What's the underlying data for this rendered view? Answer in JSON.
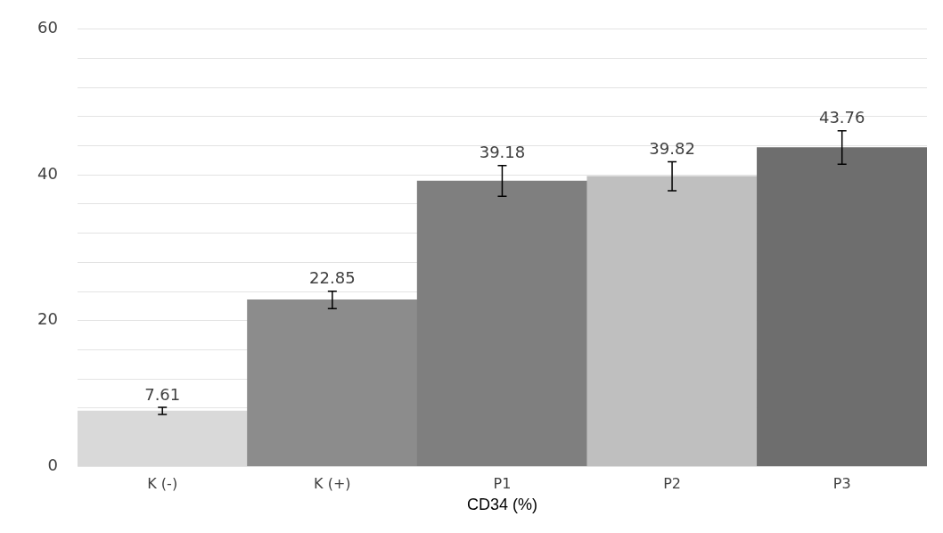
{
  "chart_data": {
    "type": "bar",
    "xlabel": "CD34 (%)",
    "categories": [
      "K (-)",
      "K (+)",
      "P1",
      "P2",
      "P3"
    ],
    "values": [
      7.61,
      22.85,
      39.18,
      39.82,
      43.76
    ],
    "colors": [
      "#d9d9d9",
      "#8c8c8c",
      "#7f7f7f",
      "#bfbfbf",
      "#6e6e6e"
    ],
    "errors": [
      0.5,
      1.2,
      2.1,
      2.0,
      2.3
    ],
    "data_labels": true,
    "ylim": [
      0,
      60
    ],
    "yticks": [
      0,
      {
        "value": 8,
        "label": null
      },
      {
        "value": 12,
        "label": null
      },
      {
        "value": 16,
        "label": null
      },
      20,
      {
        "value": 24,
        "label": null
      },
      {
        "value": 28,
        "label": null
      },
      {
        "value": 32,
        "label": null
      },
      {
        "value": 36,
        "label": null
      },
      40,
      {
        "value": 44,
        "label": null
      },
      {
        "value": 48,
        "label": null
      },
      {
        "value": 52,
        "label": null
      },
      {
        "value": 56,
        "label": null
      },
      60
    ],
    "grid": "y",
    "legend": false
  }
}
